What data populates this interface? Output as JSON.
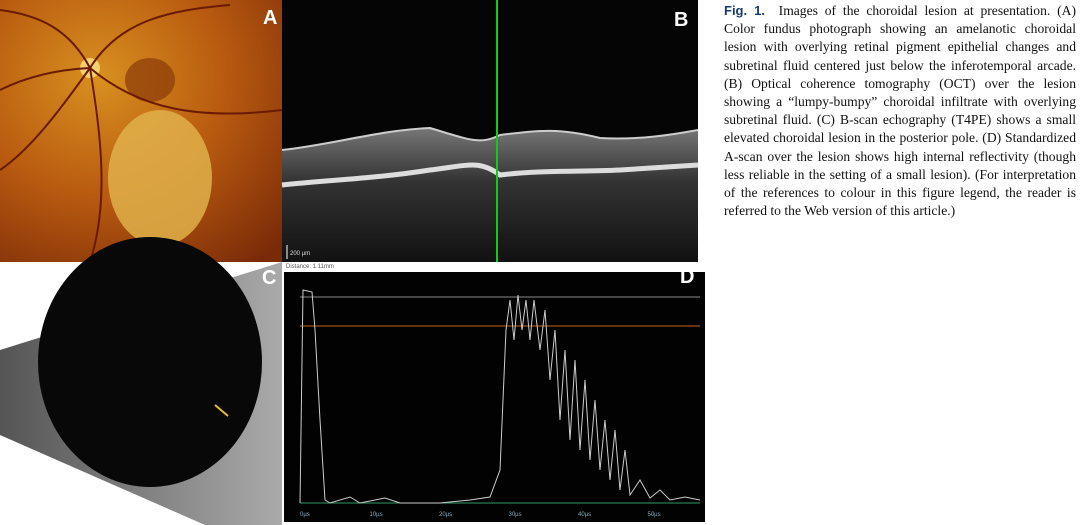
{
  "figure": {
    "panels": [
      {
        "label": "A"
      },
      {
        "label": "B",
        "scale_bar": "200 µm",
        "distance": "Distance: 1.11mm"
      },
      {
        "label": "C"
      },
      {
        "label": "D",
        "axis_labels": [
          "0µs",
          "10µs",
          "20µs",
          "30µs",
          "40µs",
          "50µs"
        ]
      }
    ],
    "caption": {
      "label": "Fig. 1.",
      "text": "Images of the choroidal lesion at presentation. (A) Color fundus photograph showing an amelanotic choroidal lesion with overlying retinal pigment epithelial changes and subretinal fluid centered just below the inferotemporal arcade. (B) Optical coherence tomography (OCT) over the lesion showing a “lumpy-bumpy” choroidal infiltrate with overlying subretinal fluid. (C) B-scan echography (T4PE) shows a small elevated choroidal lesion in the posterior pole. (D) Standardized A-scan over the lesion shows high internal reflectivity (though less reliable in the setting of a small lesion). (For interpretation of the references to colour in this figure legend, the reader is referred to the Web version of this article.)"
    }
  }
}
